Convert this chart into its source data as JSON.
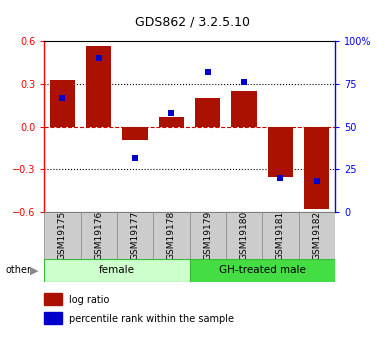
{
  "title": "GDS862 / 3.2.5.10",
  "samples": [
    "GSM19175",
    "GSM19176",
    "GSM19177",
    "GSM19178",
    "GSM19179",
    "GSM19180",
    "GSM19181",
    "GSM19182"
  ],
  "log_ratio": [
    0.33,
    0.57,
    -0.09,
    0.07,
    0.2,
    0.25,
    -0.35,
    -0.58
  ],
  "percentile_rank": [
    67,
    90,
    32,
    58,
    82,
    76,
    20,
    18
  ],
  "groups": [
    {
      "label": "female",
      "start": 0,
      "end": 4,
      "color": "#ccffcc"
    },
    {
      "label": "GH-treated male",
      "start": 4,
      "end": 8,
      "color": "#44dd44"
    }
  ],
  "ylim_left": [
    -0.6,
    0.6
  ],
  "ylim_right": [
    0,
    100
  ],
  "yticks_left": [
    -0.6,
    -0.3,
    0.0,
    0.3,
    0.6
  ],
  "yticks_right": [
    0,
    25,
    50,
    75,
    100
  ],
  "ytick_labels_right": [
    "0",
    "25",
    "50",
    "75",
    "100%"
  ],
  "bar_color": "#aa1100",
  "dot_color": "#0000cc",
  "hline_color": "#cc0000",
  "dot_color2": "#cc0000",
  "other_label": "other",
  "legend_log_ratio": "log ratio",
  "legend_percentile": "percentile rank within the sample",
  "title_fontsize": 9,
  "tick_fontsize": 7,
  "label_fontsize": 6.5,
  "group_fontsize": 7.5
}
